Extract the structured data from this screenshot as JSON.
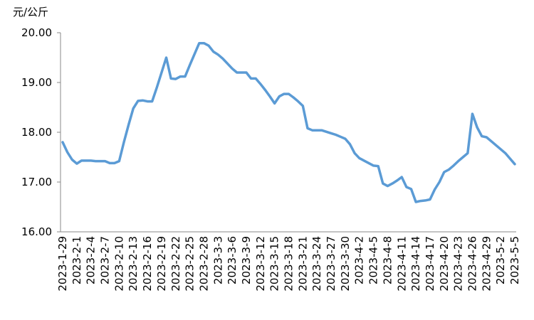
{
  "chart_data": {
    "type": "line",
    "y_label": "元/公斤",
    "categories": [
      "2023-1-29",
      null,
      null,
      "2023-2-1",
      null,
      null,
      "2023-2-4",
      null,
      null,
      "2023-2-7",
      null,
      null,
      "2023-2-10",
      null,
      null,
      "2023-2-13",
      null,
      null,
      "2023-2-16",
      null,
      null,
      "2023-2-19",
      null,
      null,
      "2023-2-22",
      null,
      null,
      "2023-2-25",
      null,
      null,
      "2023-2-28",
      null,
      null,
      "2023-3-3",
      null,
      null,
      "2023-3-6",
      null,
      null,
      "2023-3-9",
      null,
      null,
      "2023-3-12",
      null,
      null,
      "2023-3-15",
      null,
      null,
      "2023-3-18",
      null,
      null,
      "2023-3-21",
      null,
      null,
      "2023-3-24",
      null,
      null,
      "2023-3-27",
      null,
      null,
      "2023-3-30",
      null,
      null,
      "2023-4-2",
      null,
      null,
      "2023-4-5",
      null,
      null,
      "2023-4-8",
      null,
      null,
      "2023-4-11",
      null,
      null,
      "2023-4-14",
      null,
      null,
      "2023-4-17",
      null,
      null,
      "2023-4-20",
      null,
      null,
      "2023-4-23",
      null,
      null,
      "2023-4-26",
      null,
      null,
      "2023-4-29",
      null,
      null,
      "2023-5-2",
      null,
      null,
      "2023-5-5"
    ],
    "values": [
      17.8,
      17.6,
      17.45,
      17.37,
      17.43,
      17.43,
      17.43,
      17.42,
      17.42,
      17.42,
      17.38,
      17.38,
      17.42,
      17.8,
      18.15,
      18.48,
      18.63,
      18.64,
      18.62,
      18.62,
      18.9,
      19.2,
      19.5,
      19.08,
      19.07,
      19.12,
      19.12,
      19.35,
      19.57,
      19.79,
      19.79,
      19.74,
      19.62,
      19.56,
      19.48,
      19.38,
      19.28,
      19.2,
      19.2,
      19.2,
      19.08,
      19.08,
      18.97,
      18.85,
      18.72,
      18.58,
      18.72,
      18.77,
      18.77,
      18.7,
      18.62,
      18.53,
      18.08,
      18.04,
      18.04,
      18.04,
      18.01,
      17.98,
      17.95,
      17.91,
      17.87,
      17.76,
      17.58,
      17.48,
      17.43,
      17.38,
      17.33,
      17.32,
      16.97,
      16.92,
      16.97,
      17.03,
      17.1,
      16.9,
      16.86,
      16.6,
      16.62,
      16.63,
      16.65,
      16.85,
      17.0,
      17.2,
      17.25,
      17.33,
      17.42,
      17.5,
      17.58,
      18.37,
      18.1,
      17.92,
      17.9,
      17.82,
      17.74,
      17.66,
      17.58,
      17.47,
      17.36
    ],
    "color": "#5b9bd5",
    "ylim": [
      16,
      20
    ],
    "yticks": [
      {
        "value": 16,
        "label": "16.00"
      },
      {
        "value": 17,
        "label": "17.00"
      },
      {
        "value": 18,
        "label": "18.00"
      },
      {
        "value": 19,
        "label": "19.00"
      },
      {
        "value": 20,
        "label": "20.00"
      }
    ],
    "grid": false
  }
}
